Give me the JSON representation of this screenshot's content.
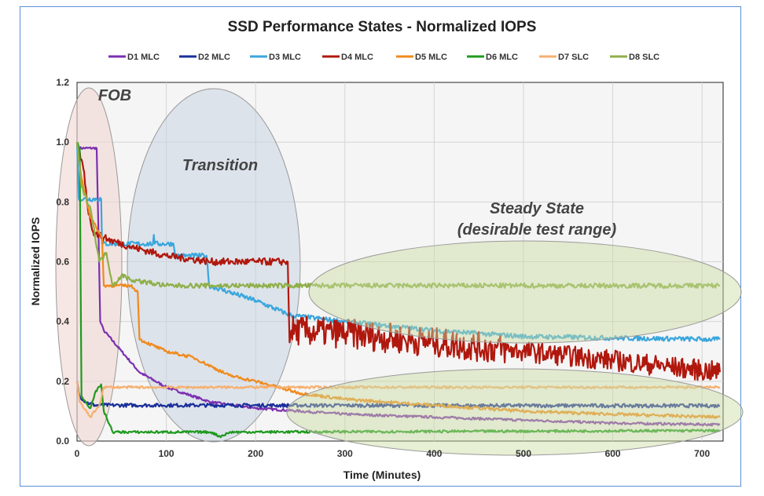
{
  "chart_data": {
    "type": "line",
    "title": "SSD Performance States - Normalized IOPS",
    "xlabel": "Time (Minutes)",
    "ylabel": "Normalized IOPS",
    "xlim": [
      0,
      720
    ],
    "ylim": [
      0,
      1.2
    ],
    "xticks": [
      "0",
      "100",
      "200",
      "300",
      "400",
      "500",
      "600",
      "700"
    ],
    "yticks": [
      "0.0",
      "0.2",
      "0.4",
      "0.6",
      "0.8",
      "1.0",
      "1.2"
    ],
    "grid": true,
    "legend_position": "top",
    "annotations": [
      {
        "text": "FOB",
        "region_x": [
          0,
          30
        ]
      },
      {
        "text": "Transition",
        "region_x": [
          60,
          250
        ]
      },
      {
        "text": "Steady State",
        "region_x": [
          260,
          720
        ]
      },
      {
        "text": "(desirable test range)",
        "region_x": [
          260,
          720
        ]
      }
    ],
    "series": [
      {
        "name": "D1 MLC",
        "color": "#7b2fb0",
        "points": [
          [
            0,
            1.0
          ],
          [
            2,
            0.98
          ],
          [
            22,
            0.98
          ],
          [
            24,
            0.7
          ],
          [
            26,
            0.4
          ],
          [
            30,
            0.37
          ],
          [
            50,
            0.3
          ],
          [
            70,
            0.23
          ],
          [
            100,
            0.18
          ],
          [
            150,
            0.13
          ],
          [
            200,
            0.11
          ],
          [
            300,
            0.09
          ],
          [
            400,
            0.08
          ],
          [
            500,
            0.07
          ],
          [
            600,
            0.06
          ],
          [
            720,
            0.055
          ]
        ]
      },
      {
        "name": "D2 MLC",
        "color": "#1a2f9a",
        "points": [
          [
            0,
            0.2
          ],
          [
            3,
            0.15
          ],
          [
            10,
            0.13
          ],
          [
            20,
            0.12
          ],
          [
            720,
            0.118
          ]
        ]
      },
      {
        "name": "D3 MLC",
        "color": "#3aa6dc",
        "points": [
          [
            0,
            1.0
          ],
          [
            2,
            0.81
          ],
          [
            27,
            0.81
          ],
          [
            28,
            0.66
          ],
          [
            85,
            0.66
          ],
          [
            86,
            0.69
          ],
          [
            87,
            0.66
          ],
          [
            108,
            0.66
          ],
          [
            110,
            0.62
          ],
          [
            145,
            0.62
          ],
          [
            148,
            0.52
          ],
          [
            200,
            0.47
          ],
          [
            240,
            0.42
          ],
          [
            300,
            0.4
          ],
          [
            400,
            0.37
          ],
          [
            500,
            0.35
          ],
          [
            600,
            0.345
          ],
          [
            720,
            0.34
          ]
        ]
      },
      {
        "name": "D4 MLC",
        "color": "#b0180e",
        "points": [
          [
            0,
            1.0
          ],
          [
            8,
            0.9
          ],
          [
            12,
            0.78
          ],
          [
            18,
            0.7
          ],
          [
            30,
            0.68
          ],
          [
            60,
            0.65
          ],
          [
            100,
            0.62
          ],
          [
            150,
            0.6
          ],
          [
            236,
            0.6
          ],
          [
            238,
            0.33
          ],
          [
            240,
            0.37
          ],
          [
            300,
            0.36
          ],
          [
            400,
            0.33
          ],
          [
            500,
            0.3
          ],
          [
            600,
            0.27
          ],
          [
            720,
            0.23
          ]
        ]
      },
      {
        "name": "D5 MLC",
        "color": "#f08a1c",
        "points": [
          [
            0,
            1.0
          ],
          [
            5,
            0.88
          ],
          [
            15,
            0.75
          ],
          [
            28,
            0.68
          ],
          [
            30,
            0.52
          ],
          [
            60,
            0.52
          ],
          [
            68,
            0.5
          ],
          [
            70,
            0.34
          ],
          [
            100,
            0.3
          ],
          [
            130,
            0.28
          ],
          [
            150,
            0.25
          ],
          [
            170,
            0.22
          ],
          [
            200,
            0.2
          ],
          [
            250,
            0.16
          ],
          [
            300,
            0.14
          ],
          [
            400,
            0.12
          ],
          [
            500,
            0.1
          ],
          [
            600,
            0.09
          ],
          [
            720,
            0.08
          ]
        ]
      },
      {
        "name": "D6 MLC",
        "color": "#1f9a1f",
        "points": [
          [
            0,
            1.0
          ],
          [
            3,
            0.98
          ],
          [
            5,
            0.15
          ],
          [
            10,
            0.13
          ],
          [
            15,
            0.11
          ],
          [
            20,
            0.16
          ],
          [
            27,
            0.19
          ],
          [
            30,
            0.1
          ],
          [
            40,
            0.03
          ],
          [
            150,
            0.03
          ],
          [
            160,
            0.015
          ],
          [
            172,
            0.03
          ],
          [
            720,
            0.035
          ]
        ]
      },
      {
        "name": "D7 SLC",
        "color": "#f5b070",
        "points": [
          [
            0,
            0.2
          ],
          [
            3,
            0.13
          ],
          [
            15,
            0.08
          ],
          [
            25,
            0.12
          ],
          [
            30,
            0.18
          ],
          [
            720,
            0.18
          ]
        ]
      },
      {
        "name": "D8 SLC",
        "color": "#8faf4a",
        "points": [
          [
            0,
            1.0
          ],
          [
            5,
            0.85
          ],
          [
            15,
            0.78
          ],
          [
            25,
            0.6
          ],
          [
            33,
            0.63
          ],
          [
            40,
            0.52
          ],
          [
            50,
            0.555
          ],
          [
            60,
            0.54
          ],
          [
            100,
            0.52
          ],
          [
            720,
            0.52
          ]
        ]
      }
    ]
  }
}
